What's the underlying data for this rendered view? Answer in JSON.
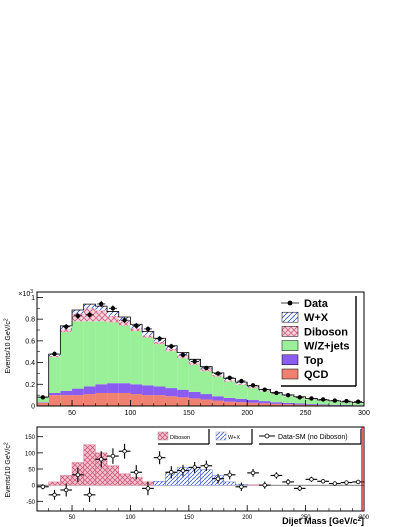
{
  "chart_data": [
    {
      "type": "bar",
      "subtype": "stacked-histogram",
      "ylabel": "Events/10 GeV/c",
      "ylabel_superscript": "2",
      "y_multiplier": "×10",
      "y_multiplier_exp": "3",
      "xlim": [
        20,
        300
      ],
      "ylim": [
        0,
        1.05
      ],
      "x_ticks": [
        "50",
        "100",
        "150",
        "200",
        "250",
        "300"
      ],
      "y_ticks": [
        "1",
        "0.8",
        "0.6",
        "0.4",
        "0.2",
        "0"
      ],
      "bin_edges": [
        20,
        30,
        40,
        50,
        60,
        70,
        80,
        90,
        100,
        110,
        120,
        130,
        140,
        150,
        160,
        170,
        180,
        190,
        200,
        210,
        220,
        230,
        240,
        250,
        260,
        270,
        280,
        290,
        300
      ],
      "series": [
        {
          "name": "QCD",
          "color": "#f08070",
          "values": [
            0.03,
            0.1,
            0.1,
            0.1,
            0.11,
            0.12,
            0.12,
            0.12,
            0.11,
            0.1,
            0.1,
            0.09,
            0.08,
            0.07,
            0.06,
            0.05,
            0.04,
            0.035,
            0.03,
            0.025,
            0.02,
            0.016,
            0.013,
            0.01,
            0.008,
            0.006,
            0.005,
            0.004
          ]
        },
        {
          "name": "Top",
          "color": "#8a5cf0",
          "values": [
            0.005,
            0.02,
            0.04,
            0.06,
            0.07,
            0.08,
            0.09,
            0.09,
            0.09,
            0.09,
            0.08,
            0.075,
            0.07,
            0.06,
            0.05,
            0.04,
            0.035,
            0.03,
            0.025,
            0.02,
            0.015,
            0.012,
            0.01,
            0.008,
            0.006,
            0.005,
            0.004,
            0.003
          ]
        },
        {
          "name": "W/Z+jets",
          "color": "#99f099",
          "values": [
            0.04,
            0.33,
            0.54,
            0.62,
            0.6,
            0.58,
            0.56,
            0.53,
            0.49,
            0.44,
            0.39,
            0.34,
            0.29,
            0.25,
            0.21,
            0.18,
            0.15,
            0.13,
            0.11,
            0.09,
            0.075,
            0.062,
            0.052,
            0.043,
            0.035,
            0.03,
            0.025,
            0.02
          ]
        },
        {
          "name": "Diboson",
          "color": "#e0a0b0",
          "values": [
            0,
            0.01,
            0.03,
            0.07,
            0.12,
            0.1,
            0.06,
            0.04,
            0.025,
            0.02,
            0.02,
            0.02,
            0.025,
            0.025,
            0.02,
            0.015,
            0.012,
            0.01,
            0.008,
            0.006,
            0.005,
            0.004,
            0.003,
            0.003,
            0.002,
            0.002,
            0.001,
            0.001
          ]
        },
        {
          "name": "W+X",
          "color": "#6080e0",
          "values": [
            0.008,
            0.018,
            0.028,
            0.034,
            0.038,
            0.04,
            0.04,
            0.04,
            0.038,
            0.036,
            0.034,
            0.03,
            0.028,
            0.025,
            0.022,
            0.02,
            0.018,
            0.015,
            0.013,
            0.011,
            0.009,
            0.008,
            0.007,
            0.006,
            0.005,
            0.004,
            0.003,
            0.003
          ]
        }
      ],
      "data_points": {
        "name": "Data",
        "x": [
          25,
          35,
          45,
          55,
          65,
          75,
          85,
          95,
          105,
          115,
          125,
          135,
          145,
          155,
          165,
          175,
          185,
          195,
          205,
          215,
          225,
          235,
          245,
          255,
          265,
          275,
          285,
          295
        ],
        "y": [
          0.08,
          0.48,
          0.73,
          0.83,
          0.84,
          0.94,
          0.9,
          0.79,
          0.74,
          0.71,
          0.62,
          0.55,
          0.47,
          0.41,
          0.35,
          0.3,
          0.26,
          0.23,
          0.19,
          0.15,
          0.12,
          0.1,
          0.08,
          0.07,
          0.06,
          0.05,
          0.045,
          0.04
        ],
        "err": [
          0.01,
          0.02,
          0.025,
          0.027,
          0.027,
          0.029,
          0.028,
          0.027,
          0.026,
          0.025,
          0.024,
          0.023,
          0.021,
          0.02,
          0.019,
          0.017,
          0.016,
          0.015,
          0.014,
          0.012,
          0.011,
          0.01,
          0.009,
          0.008,
          0.008,
          0.007,
          0.007,
          0.006
        ]
      },
      "legend": [
        "Data",
        "W+X",
        "Diboson",
        "W/Z+jets",
        "Top",
        "QCD"
      ],
      "legend_position": "top-right"
    },
    {
      "type": "scatter",
      "subtype": "residual",
      "xlabel": "Dijet Mass [GeV/c",
      "xlabel_superscript": "2",
      "xlabel_suffix": "]",
      "ylabel": "Events/10 GeV/c",
      "ylabel_superscript": "2",
      "xlim": [
        20,
        300
      ],
      "ylim": [
        -80,
        180
      ],
      "x_ticks": [
        "50",
        "100",
        "150",
        "200",
        "250",
        "300"
      ],
      "y_ticks": [
        "150",
        "100",
        "50",
        "0",
        "-50"
      ],
      "diboson_hist": [
        0,
        10,
        30,
        70,
        125,
        100,
        60,
        35,
        25,
        10,
        8,
        6,
        5,
        4,
        3,
        2,
        2,
        1,
        1,
        1,
        0,
        0,
        0,
        0,
        0,
        0,
        0,
        0
      ],
      "wx_hist": [
        0,
        0,
        0,
        0,
        0,
        0,
        0,
        0,
        0,
        0,
        12,
        40,
        55,
        55,
        48,
        30,
        10,
        3,
        0,
        0,
        0,
        0,
        0,
        0,
        0,
        0,
        0,
        0
      ],
      "residual_points": {
        "x": [
          25,
          35,
          45,
          55,
          65,
          75,
          85,
          95,
          105,
          115,
          125,
          135,
          145,
          155,
          165,
          175,
          185,
          195,
          205,
          215,
          225,
          235,
          245,
          255,
          265,
          275,
          285,
          295
        ],
        "y": [
          -5,
          -30,
          -15,
          32,
          -30,
          80,
          90,
          105,
          40,
          -10,
          85,
          40,
          45,
          55,
          60,
          20,
          32,
          -5,
          38,
          0,
          30,
          10,
          -10,
          18,
          12,
          5,
          8,
          10
        ],
        "err": [
          8,
          15,
          20,
          22,
          22,
          25,
          24,
          23,
          22,
          21,
          20,
          19,
          18,
          17,
          16,
          15,
          14,
          13,
          12,
          11,
          10,
          9,
          8,
          8,
          7,
          7,
          6,
          6
        ],
        "xerr": 5
      },
      "legend": [
        "Diboson",
        "W+X",
        "Data-SM (no Diboson)"
      ]
    }
  ]
}
